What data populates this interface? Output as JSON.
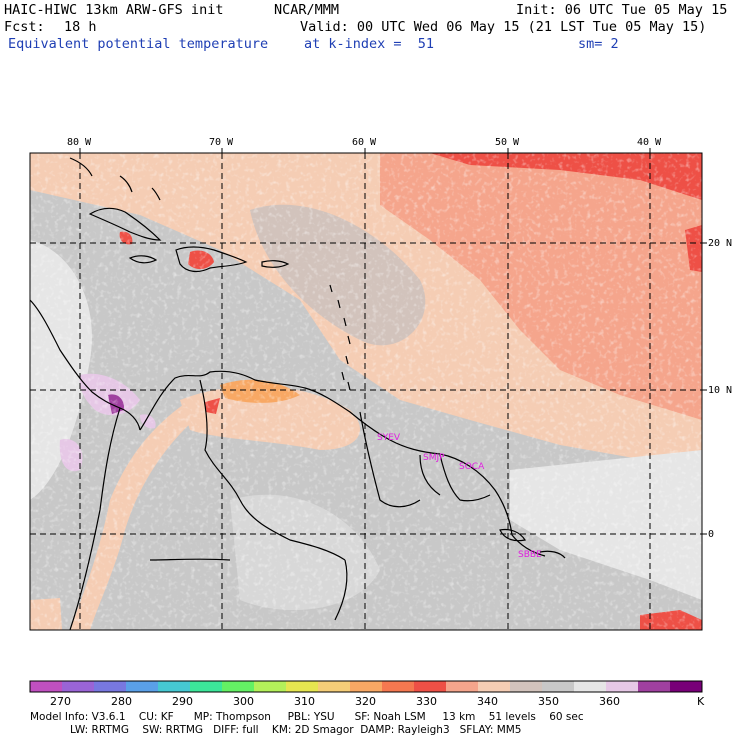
{
  "header": {
    "model_title": "HAIC-HIWC 13km ARW-GFS init",
    "org": "NCAR/MMM",
    "init": "Init: 06 UTC Tue 05 May 15",
    "fcst_label": "Fcst:",
    "fcst_value": "18 h",
    "valid": "Valid: 00 UTC Wed 06 May 15 (21 LST Tue 05 May 15)",
    "field": "Equivalent potential temperature",
    "level": "at k-index =  51",
    "smooth": "sm= 2"
  },
  "map": {
    "lon_labels": [
      "80 W",
      "70 W",
      "60 W",
      "50 W",
      "40 W"
    ],
    "lat_labels": [
      "20 N",
      "10 N",
      "0"
    ],
    "stations": [
      {
        "id": "SYEV",
        "label": "SYEV"
      },
      {
        "id": "SMJP",
        "label": "SMJP"
      },
      {
        "id": "SOCA",
        "label": "SOCA"
      },
      {
        "id": "SBBE",
        "label": "SBBE"
      }
    ]
  },
  "colorbar": {
    "unit": "K",
    "labels": [
      "270",
      "280",
      "290",
      "300",
      "310",
      "320",
      "330",
      "340",
      "350",
      "360"
    ],
    "colors": [
      "#c050c0",
      "#9a64d6",
      "#7878e0",
      "#5aa0e8",
      "#46c8d2",
      "#3ce69a",
      "#64f064",
      "#b4f05a",
      "#e6e650",
      "#f5cd78",
      "#f8a864",
      "#f57850",
      "#ee5046",
      "#f5a58c",
      "#f5cdb4",
      "#d2c3bc",
      "#c8c8c8",
      "#e6e6e6",
      "#e6c8e6",
      "#a040a0",
      "#780078"
    ]
  },
  "footer": {
    "line1": "Model Info: V3.6.1    CU: KF      MP: Thompson     PBL: YSU      SF: Noah LSM     13 km    51 levels    60 sec",
    "line2": "LW: RRTMG    SW: RRTMG   DIFF: full    KM: 2D Smagor  DAMP: Rayleigh3   SFLAY: MM5"
  }
}
